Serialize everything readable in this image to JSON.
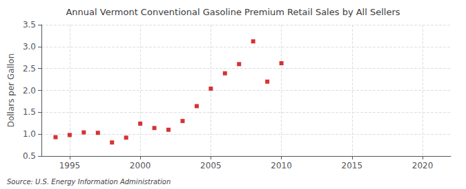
{
  "chart_data": {
    "type": "scatter",
    "title": "Annual Vermont Conventional Gasoline Premium Retail Sales by All Sellers",
    "ylabel": "Dollars per Gallon",
    "annotation": "Source: U.S. Energy Information Administration",
    "x": [
      1994,
      1995,
      1996,
      1997,
      1998,
      1999,
      2000,
      2001,
      2002,
      2003,
      2004,
      2005,
      2006,
      2007,
      2008,
      2009,
      2010
    ],
    "values": [
      0.93,
      0.98,
      1.04,
      1.03,
      0.81,
      0.92,
      1.24,
      1.14,
      1.1,
      1.3,
      1.64,
      2.04,
      2.39,
      2.6,
      3.12,
      2.2,
      2.62
    ],
    "color": "#cc0000",
    "marker": "square",
    "xlim": [
      1993,
      2022
    ],
    "xticks": [
      1995,
      2000,
      2005,
      2010,
      2015,
      2020
    ],
    "ylim": [
      0.5,
      3.5
    ],
    "yticks": [
      0.5,
      {
        "value": 1,
        "label": "1.0"
      },
      1.5,
      {
        "value": 2,
        "label": "2.0"
      },
      2.5,
      {
        "value": 3,
        "label": "3.0"
      },
      3.5
    ],
    "grid": true
  }
}
